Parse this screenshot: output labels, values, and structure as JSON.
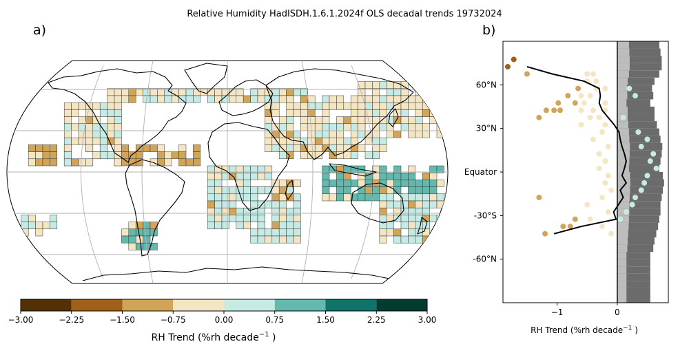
{
  "title": "Relative Humidity HadISDH.1.6.1.2024f OLS decadal trends 19732024",
  "panel_a": {
    "label": "a)",
    "colorbar": {
      "label_main": "RH Trend (%rh decade",
      "label_exp": "−1",
      "label_end": " )",
      "bins": [
        {
          "from": -3.0,
          "to": -2.25,
          "color": "#543005"
        },
        {
          "from": -2.25,
          "to": -1.5,
          "color": "#a0601a"
        },
        {
          "from": -1.5,
          "to": -0.75,
          "color": "#d2a458"
        },
        {
          "from": -0.75,
          "to": 0.0,
          "color": "#f5e6c3"
        },
        {
          "from": 0.0,
          "to": 0.75,
          "color": "#c6ebe5"
        },
        {
          "from": 0.75,
          "to": 1.5,
          "color": "#64b8ad"
        },
        {
          "from": 1.5,
          "to": 2.25,
          "color": "#10736a"
        },
        {
          "from": 2.25,
          "to": 3.0,
          "color": "#003c30"
        }
      ],
      "tick_labels": [
        "−3.00",
        "−2.25",
        "−1.50",
        "−0.75",
        "0.00",
        "0.75",
        "1.50",
        "2.25",
        "3.00"
      ]
    }
  },
  "panel_b": {
    "label": "b)",
    "xlabel_main": "RH Trend (%rh decade",
    "xlabel_exp": "−1",
    "xlabel_end": " )"
  },
  "chart_data": {
    "type": "scatter",
    "x_ticks": [
      -1,
      0
    ],
    "x_tick_labels": [
      "−1",
      "0"
    ],
    "xlim": [
      -1.9,
      0.85
    ],
    "ylim": [
      -90,
      90
    ],
    "y_ticks": [
      60,
      30,
      0,
      -30,
      -60
    ],
    "y_tick_labels": [
      "60°N",
      "30°N",
      "Equator",
      "-30°S",
      "-60°N"
    ],
    "zonal_mean_line": {
      "lat": [
        72.5,
        67.5,
        62.5,
        57.5,
        52.5,
        47.5,
        42.5,
        37.5,
        32.5,
        27.5,
        22.5,
        17.5,
        12.5,
        7.5,
        2.5,
        -2.5,
        -7.5,
        -12.5,
        -17.5,
        -22.5,
        -27.5,
        -32.5,
        -37.5,
        -42.5
      ],
      "trend": [
        -1.5,
        -1.08,
        -0.55,
        -0.3,
        -0.28,
        -0.3,
        -0.25,
        -0.15,
        -0.05,
        0.03,
        0.05,
        0.08,
        0.12,
        0.15,
        0.12,
        0.08,
        0.15,
        0.05,
        0.1,
        0.02,
        -0.06,
        -0.02,
        -0.6,
        -1.05
      ]
    },
    "land_fraction_bars": {
      "lat_start": [
        -90,
        -80,
        -75,
        -70,
        -65,
        -60,
        -55,
        -50,
        -45,
        -40,
        -35,
        -30,
        -25,
        -20,
        -15,
        -10,
        -5,
        0,
        5,
        10,
        15,
        20,
        25,
        30,
        35,
        40,
        45,
        50,
        55,
        60,
        65,
        70,
        75,
        80,
        85
      ],
      "extent": [
        0.55,
        0.55,
        0.55,
        0.55,
        0.55,
        0.55,
        0.6,
        0.62,
        0.65,
        0.68,
        0.7,
        0.72,
        0.72,
        0.74,
        0.76,
        0.78,
        0.76,
        0.7,
        0.72,
        0.74,
        0.75,
        0.72,
        0.7,
        0.66,
        0.62,
        0.62,
        0.55,
        0.6,
        0.58,
        0.62,
        0.7,
        0.74,
        0.74,
        0.72,
        0.7
      ]
    },
    "dark_points": [
      [
        -1.82,
        72.5
      ],
      [
        -1.72,
        77.5
      ]
    ],
    "brown_points": [
      [
        -1.5,
        67.5
      ],
      [
        -1.3,
        37.5
      ],
      [
        -0.98,
        47.5
      ],
      [
        -0.82,
        52.5
      ],
      [
        -0.7,
        47.5
      ],
      [
        -0.65,
        57.5
      ],
      [
        -1.18,
        42.5
      ],
      [
        -1.05,
        42.5
      ],
      [
        -0.95,
        42.5
      ],
      [
        -1.3,
        -17.5
      ],
      [
        -0.9,
        -37.5
      ],
      [
        -0.78,
        -37.5
      ],
      [
        -1.2,
        -42.5
      ],
      [
        -0.7,
        -32.5
      ]
    ],
    "beige_points": [
      [
        -0.4,
        67.5
      ],
      [
        -0.5,
        67.5
      ],
      [
        -0.35,
        62.5
      ],
      [
        -0.5,
        62.5
      ],
      [
        -0.2,
        57.5
      ],
      [
        -0.35,
        57.5
      ],
      [
        -0.45,
        52.5
      ],
      [
        -0.6,
        52.5
      ],
      [
        -0.2,
        47.5
      ],
      [
        -0.55,
        47.5
      ],
      [
        -0.2,
        42.5
      ],
      [
        -0.4,
        42.5
      ],
      [
        -0.6,
        42.5
      ],
      [
        -0.3,
        37.5
      ],
      [
        -0.45,
        37.5
      ],
      [
        -0.6,
        32.5
      ],
      [
        -0.2,
        32.5
      ],
      [
        -0.25,
        27.5
      ],
      [
        -0.4,
        22.5
      ],
      [
        -0.15,
        17.5
      ],
      [
        -0.3,
        12.5
      ],
      [
        -0.2,
        7.5
      ],
      [
        -0.3,
        2.5
      ],
      [
        -0.15,
        -2.5
      ],
      [
        -0.2,
        -7.5
      ],
      [
        -0.1,
        -12.5
      ],
      [
        -0.25,
        -17.5
      ],
      [
        -0.5,
        -22.5
      ],
      [
        -0.15,
        -27.5
      ],
      [
        -0.45,
        -32.5
      ],
      [
        -0.25,
        -37.5
      ],
      [
        -0.1,
        -42.5
      ]
    ],
    "teal_points": [
      [
        0.2,
        57.5
      ],
      [
        0.3,
        52.5
      ],
      [
        0.1,
        37.5
      ],
      [
        0.35,
        27.5
      ],
      [
        0.5,
        22.5
      ],
      [
        0.4,
        17.5
      ],
      [
        0.6,
        12.5
      ],
      [
        0.55,
        7.5
      ],
      [
        0.65,
        2.5
      ],
      [
        0.5,
        -2.5
      ],
      [
        0.45,
        -7.5
      ],
      [
        0.4,
        -12.5
      ],
      [
        0.3,
        -17.5
      ],
      [
        0.25,
        -22.5
      ],
      [
        0.15,
        -27.5
      ],
      [
        0.05,
        -32.5
      ]
    ]
  }
}
